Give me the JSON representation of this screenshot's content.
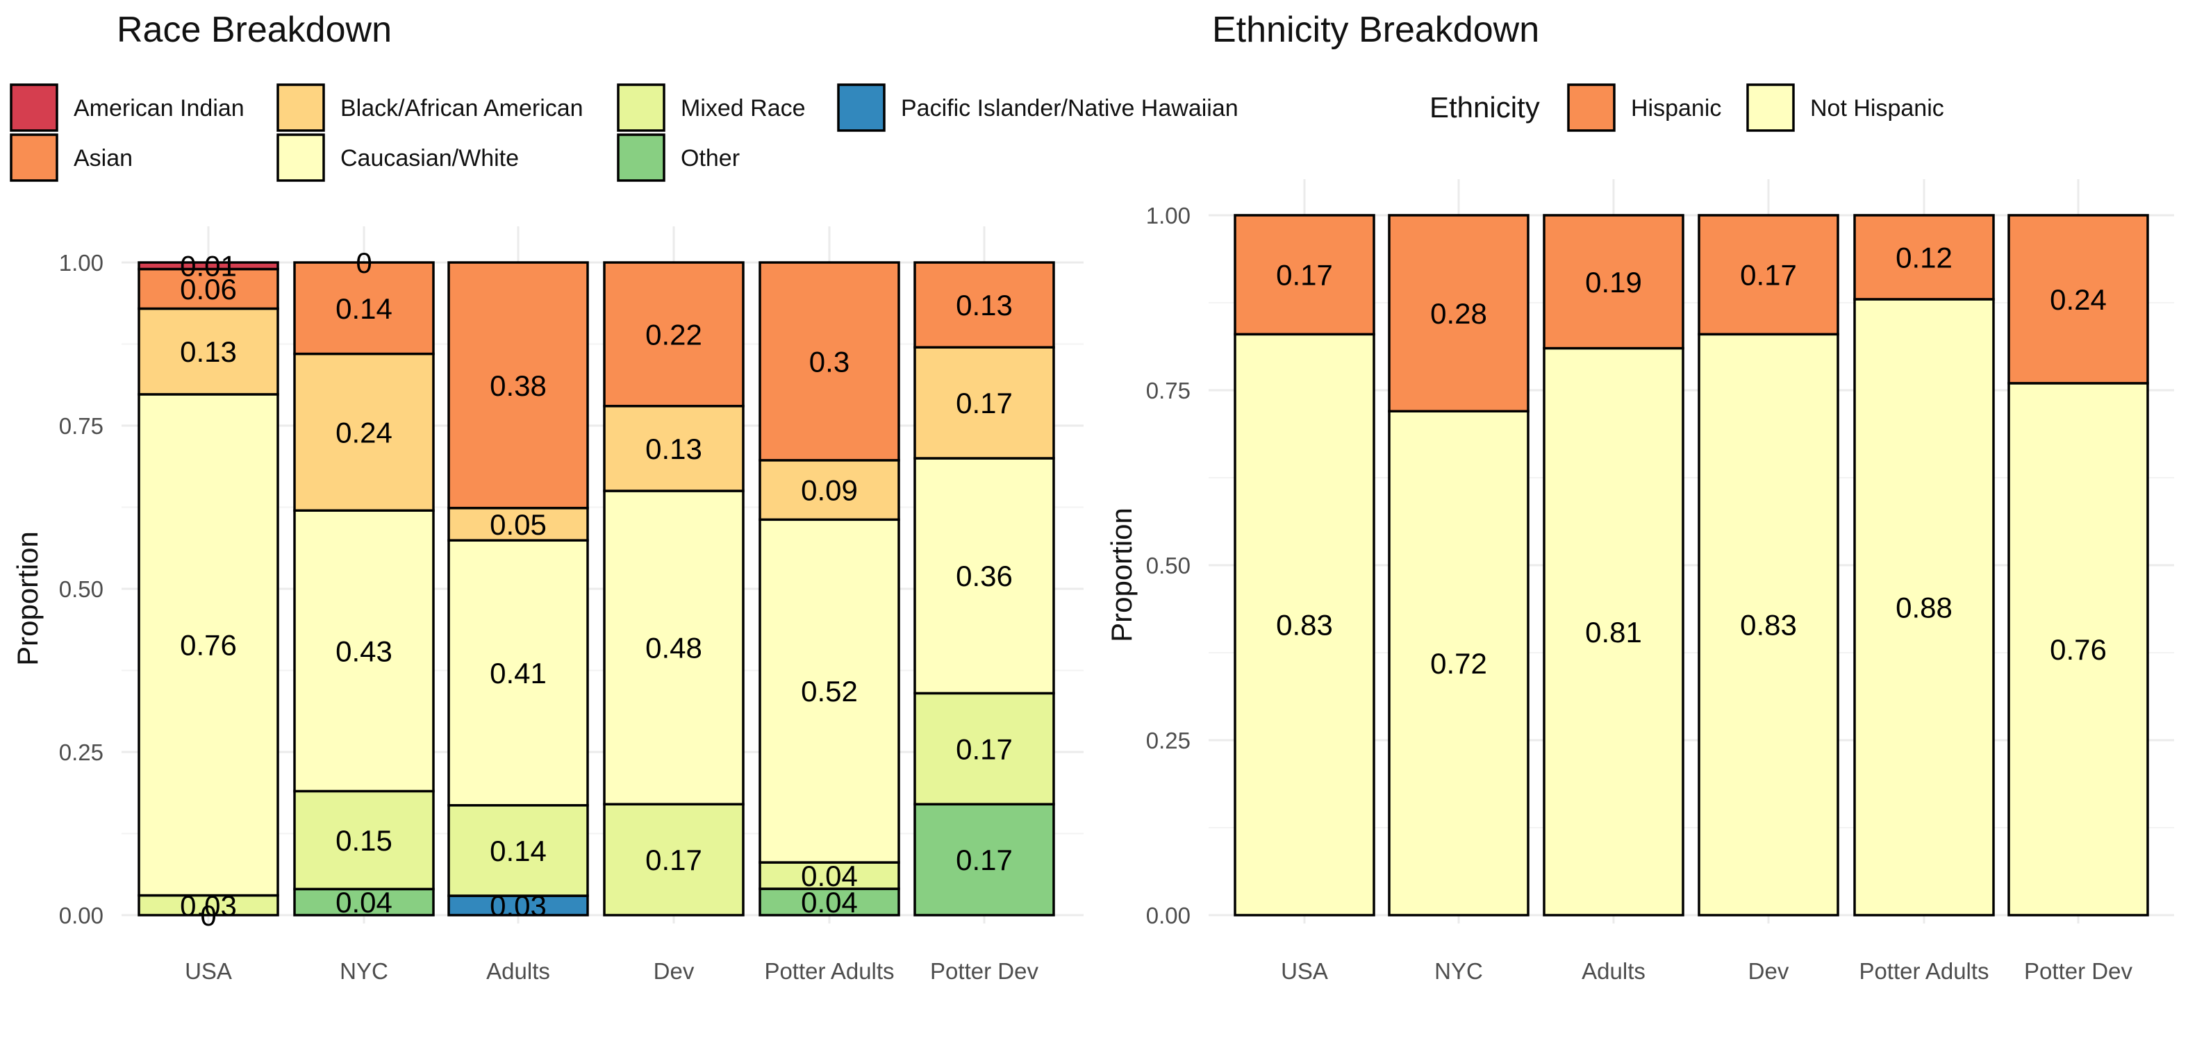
{
  "chart_data": [
    {
      "type": "bar",
      "stacked": true,
      "title": "Race Breakdown",
      "xlabel": "",
      "ylabel": "Proportion",
      "ylim": [
        0,
        1
      ],
      "yticks": [
        0,
        0.25,
        0.5,
        0.75,
        1
      ],
      "ytick_labels": [
        "0.00",
        "0.25",
        "0.50",
        "0.75",
        "1.00"
      ],
      "grid": true,
      "legend_position": "top",
      "legend_title": "",
      "legend": [
        {
          "name": "American Indian",
          "color": "#d53e4f"
        },
        {
          "name": "Asian",
          "color": "#f98e52"
        },
        {
          "name": "Black/African American",
          "color": "#fed481"
        },
        {
          "name": "Caucasian/White",
          "color": "#ffffbf"
        },
        {
          "name": "Mixed Race",
          "color": "#e6f598"
        },
        {
          "name": "Other",
          "color": "#88cf82"
        },
        {
          "name": "Pacific Islander/Native Hawaiian",
          "color": "#3288bd"
        }
      ],
      "categories": [
        "USA",
        "NYC",
        "Adults",
        "Dev",
        "Potter Adults",
        "Potter Dev"
      ],
      "stack_order": [
        "Pacific Islander/Native Hawaiian",
        "Other",
        "Mixed Race",
        "Caucasian/White",
        "Black/African American",
        "Asian",
        "American Indian"
      ],
      "series": [
        {
          "name": "American Indian",
          "values": [
            0.01,
            0.0,
            0,
            0,
            0,
            0
          ],
          "labels": [
            "0.01",
            "0",
            "",
            "",
            "",
            ""
          ]
        },
        {
          "name": "Asian",
          "values": [
            0.06,
            0.14,
            0.38,
            0.22,
            0.3,
            0.13
          ],
          "labels": [
            "0.06",
            "0.14",
            "0.38",
            "0.22",
            "0.3",
            "0.13"
          ]
        },
        {
          "name": "Black/African American",
          "values": [
            0.13,
            0.24,
            0.05,
            0.13,
            0.09,
            0.17
          ],
          "labels": [
            "0.13",
            "0.24",
            "0.05",
            "0.13",
            "0.09",
            "0.17"
          ]
        },
        {
          "name": "Caucasian/White",
          "values": [
            0.76,
            0.43,
            0.41,
            0.48,
            0.52,
            0.36
          ],
          "labels": [
            "0.76",
            "0.43",
            "0.41",
            "0.48",
            "0.52",
            "0.36"
          ]
        },
        {
          "name": "Mixed Race",
          "values": [
            0.03,
            0.15,
            0.14,
            0.17,
            0.04,
            0.17
          ],
          "labels": [
            "0.03",
            "0.15",
            "0.14",
            "0.17",
            "0.04",
            "0.17"
          ]
        },
        {
          "name": "Other",
          "values": [
            0.0,
            0.04,
            0,
            0,
            0.04,
            0.17
          ],
          "labels": [
            "0",
            "0.04",
            "",
            "",
            "0.04",
            "0.17"
          ]
        },
        {
          "name": "Pacific Islander/Native Hawaiian",
          "values": [
            0,
            0,
            0.03,
            0,
            0,
            0
          ],
          "labels": [
            "",
            "",
            "0.03",
            "",
            "",
            ""
          ]
        }
      ]
    },
    {
      "type": "bar",
      "stacked": true,
      "title": "Ethnicity Breakdown",
      "xlabel": "",
      "ylabel": "Proportion",
      "ylim": [
        0,
        1
      ],
      "yticks": [
        0,
        0.25,
        0.5,
        0.75,
        1
      ],
      "ytick_labels": [
        "0.00",
        "0.25",
        "0.50",
        "0.75",
        "1.00"
      ],
      "grid": true,
      "legend_position": "top",
      "legend_title": "Ethnicity",
      "legend": [
        {
          "name": "Hispanic",
          "color": "#f98e52"
        },
        {
          "name": "Not Hispanic",
          "color": "#ffffbf"
        }
      ],
      "categories": [
        "USA",
        "NYC",
        "Adults",
        "Dev",
        "Potter Adults",
        "Potter Dev"
      ],
      "stack_order": [
        "Not Hispanic",
        "Hispanic"
      ],
      "series": [
        {
          "name": "Hispanic",
          "values": [
            0.17,
            0.28,
            0.19,
            0.17,
            0.12,
            0.24
          ],
          "labels": [
            "0.17",
            "0.28",
            "0.19",
            "0.17",
            "0.12",
            "0.24"
          ]
        },
        {
          "name": "Not Hispanic",
          "values": [
            0.83,
            0.72,
            0.81,
            0.83,
            0.88,
            0.76
          ],
          "labels": [
            "0.83",
            "0.72",
            "0.81",
            "0.83",
            "0.88",
            "0.76"
          ]
        }
      ]
    }
  ]
}
